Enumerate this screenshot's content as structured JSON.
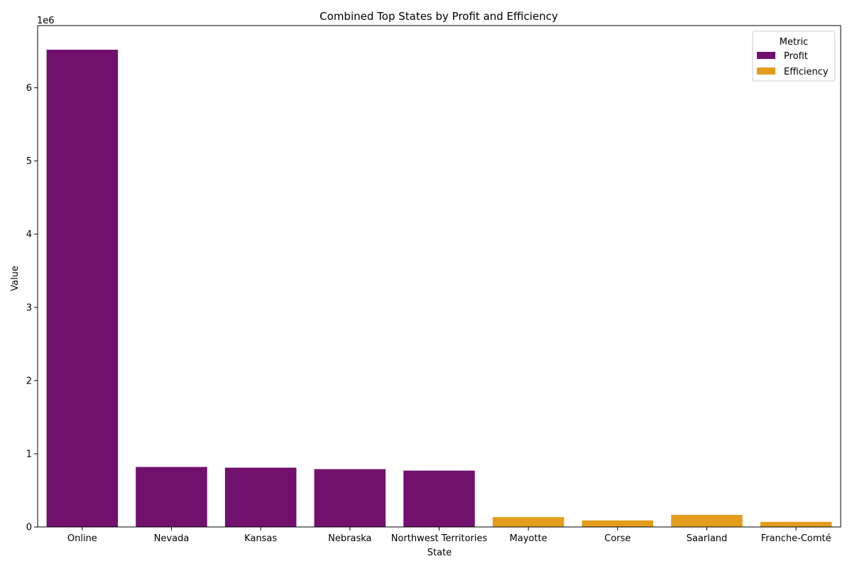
{
  "chart_data": {
    "type": "bar",
    "title": "Combined Top States by Profit and Efficiency",
    "xlabel": "State",
    "ylabel": "Value",
    "offset_label": "1e6",
    "ylim": [
      0,
      6850000
    ],
    "yticks": [
      0,
      1000000,
      2000000,
      3000000,
      4000000,
      5000000,
      6000000
    ],
    "ytick_labels": [
      "0",
      "1",
      "2",
      "3",
      "4",
      "5",
      "6"
    ],
    "categories": [
      "Online",
      "Nevada",
      "Kansas",
      "Nebraska",
      "Northwest Territories",
      "Mayotte",
      "Corse",
      "Saarland",
      "Franche-Comté"
    ],
    "series": [
      {
        "name": "Profit",
        "color": "#72106d",
        "values": [
          6520000,
          820000,
          810000,
          790000,
          770000,
          null,
          null,
          null,
          null
        ]
      },
      {
        "name": "Efficiency",
        "color": "#e39d1d",
        "values": [
          null,
          null,
          null,
          null,
          null,
          135000,
          90000,
          165000,
          70000
        ]
      }
    ],
    "legend": {
      "title": "Metric",
      "position": "top-right"
    },
    "grid": false
  }
}
